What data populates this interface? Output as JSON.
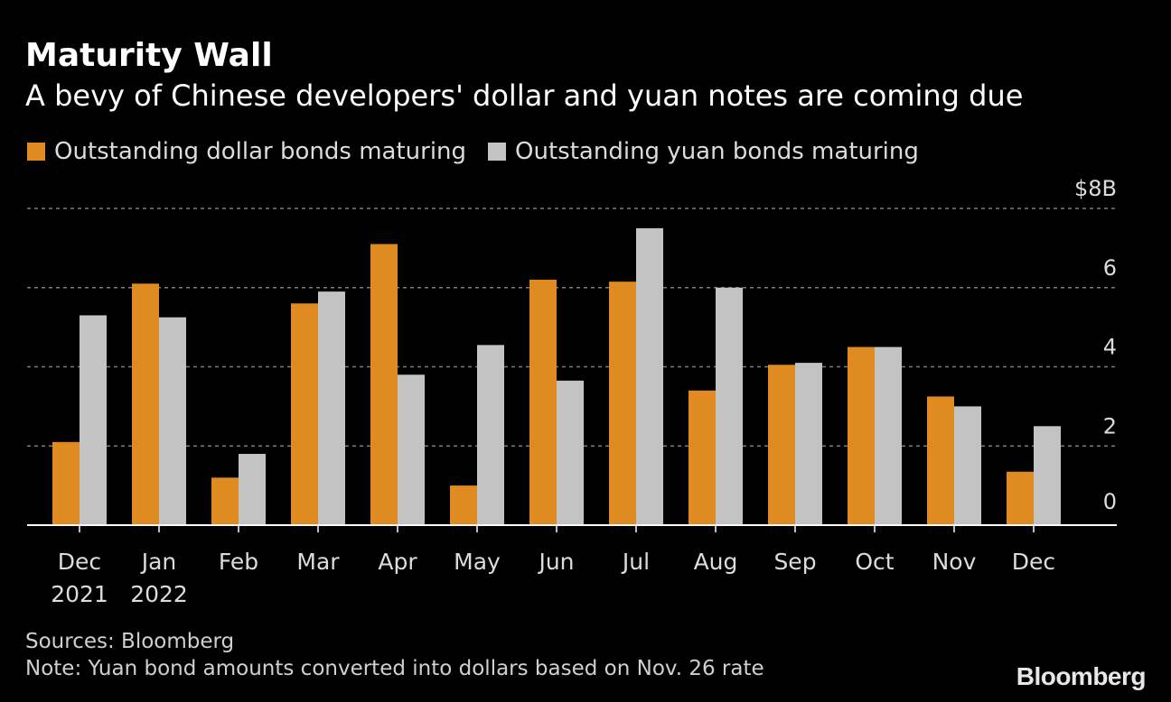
{
  "colors": {
    "background": "#000000",
    "dollar": "#e08b22",
    "yuan": "#c3c3c3",
    "grid": "#7a7a7a",
    "axis": "#ffffff",
    "text": "#ffffff",
    "muted": "#d0d0d0"
  },
  "header": {
    "title": "Maturity Wall",
    "subtitle": "A bevy of Chinese developers' dollar and yuan notes are coming due"
  },
  "legend": {
    "dollar_label": "Outstanding dollar bonds maturing",
    "yuan_label": "Outstanding yuan bonds maturing"
  },
  "footer": {
    "sources": "Sources: Bloomberg",
    "note": "Note: Yuan bond amounts converted into dollars based on Nov. 26 rate",
    "logo": "Bloomberg"
  },
  "chart_data": {
    "type": "bar",
    "title": "Maturity Wall",
    "subtitle": "A bevy of Chinese developers' dollar and yuan notes are coming due",
    "xlabel": "",
    "ylabel": "",
    "y_unit_label": "$8B",
    "categories": [
      "Dec",
      "Jan",
      "Feb",
      "Mar",
      "Apr",
      "May",
      "Jun",
      "Jul",
      "Aug",
      "Sep",
      "Oct",
      "Nov",
      "Dec"
    ],
    "category_sublabels": [
      "2021",
      "2022",
      "",
      "",
      "",
      "",
      "",
      "",
      "",
      "",
      "",
      "",
      ""
    ],
    "yticks": [
      0,
      2,
      4,
      6,
      8
    ],
    "ytick_labels": [
      "0",
      "2",
      "4",
      "6",
      "$8B"
    ],
    "ylim": [
      0,
      8
    ],
    "grid": true,
    "y_axis_side": "right",
    "legend_position": "top-left",
    "series": [
      {
        "name": "Outstanding dollar bonds maturing",
        "color": "#e08b22",
        "values": [
          2.1,
          6.1,
          1.2,
          5.6,
          7.1,
          1.0,
          6.2,
          6.15,
          3.4,
          4.05,
          4.5,
          3.25,
          1.35
        ]
      },
      {
        "name": "Outstanding yuan bonds maturing",
        "color": "#c3c3c3",
        "values": [
          5.3,
          5.25,
          1.8,
          5.9,
          3.8,
          4.55,
          3.65,
          7.5,
          6.0,
          4.1,
          4.5,
          3.0,
          2.5
        ]
      }
    ]
  }
}
